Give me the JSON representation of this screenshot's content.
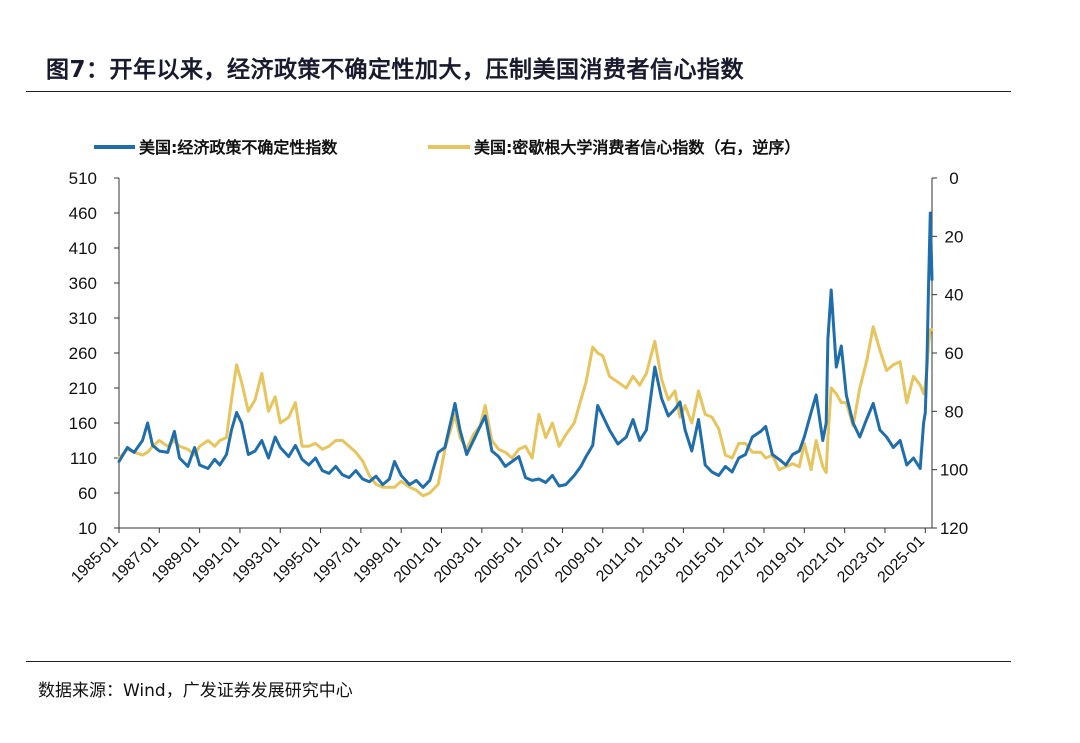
{
  "header": {
    "title": "图7：开年以来，经济政策不确定性加大，压制美国消费者信心指数"
  },
  "footer": {
    "source": "数据来源：Wind，广发证券发展研究中心"
  },
  "colors": {
    "epu": "#1f6eab",
    "sentiment": "#e6c55e",
    "rule": "#222222"
  },
  "chart_data": {
    "type": "line",
    "legend_position": "top",
    "grid": false,
    "x_tick_labels": [
      "1985-01",
      "1987-01",
      "1989-01",
      "1991-01",
      "1993-01",
      "1995-01",
      "1997-01",
      "1999-01",
      "2001-01",
      "2003-01",
      "2005-01",
      "2007-01",
      "2009-01",
      "2011-01",
      "2013-01",
      "2015-01",
      "2017-01",
      "2019-01",
      "2021-01",
      "2023-01",
      "2025-01"
    ],
    "x_range": [
      "1985-01",
      "2025-05"
    ],
    "y_left": {
      "ticks": [
        10,
        60,
        110,
        160,
        210,
        260,
        310,
        360,
        410,
        460,
        510
      ],
      "range": [
        10,
        510
      ]
    },
    "y_right": {
      "ticks": [
        0,
        20,
        40,
        60,
        80,
        100,
        120
      ],
      "range": [
        0,
        120
      ],
      "reversed": true
    },
    "series": [
      {
        "name": "美国:经济政策不确定性指数",
        "axis": "left",
        "points": [
          [
            "1985-01",
            105
          ],
          [
            "1985-06",
            125
          ],
          [
            "1985-10",
            118
          ],
          [
            "1986-03",
            135
          ],
          [
            "1986-06",
            160
          ],
          [
            "1986-09",
            128
          ],
          [
            "1987-01",
            120
          ],
          [
            "1987-06",
            118
          ],
          [
            "1987-10",
            148
          ],
          [
            "1988-01",
            110
          ],
          [
            "1988-06",
            98
          ],
          [
            "1988-10",
            125
          ],
          [
            "1989-01",
            100
          ],
          [
            "1989-06",
            95
          ],
          [
            "1989-10",
            108
          ],
          [
            "1990-01",
            100
          ],
          [
            "1990-05",
            115
          ],
          [
            "1990-08",
            150
          ],
          [
            "1990-11",
            175
          ],
          [
            "1991-02",
            160
          ],
          [
            "1991-06",
            115
          ],
          [
            "1991-10",
            120
          ],
          [
            "1992-02",
            135
          ],
          [
            "1992-06",
            110
          ],
          [
            "1992-10",
            140
          ],
          [
            "1993-01",
            125
          ],
          [
            "1993-06",
            112
          ],
          [
            "1993-10",
            128
          ],
          [
            "1994-02",
            108
          ],
          [
            "1994-06",
            100
          ],
          [
            "1994-10",
            110
          ],
          [
            "1995-02",
            92
          ],
          [
            "1995-06",
            88
          ],
          [
            "1995-10",
            98
          ],
          [
            "1996-02",
            86
          ],
          [
            "1996-06",
            82
          ],
          [
            "1996-10",
            92
          ],
          [
            "1997-02",
            80
          ],
          [
            "1997-06",
            76
          ],
          [
            "1997-10",
            84
          ],
          [
            "1998-02",
            72
          ],
          [
            "1998-06",
            80
          ],
          [
            "1998-09",
            105
          ],
          [
            "1999-01",
            85
          ],
          [
            "1999-06",
            72
          ],
          [
            "1999-10",
            78
          ],
          [
            "2000-02",
            68
          ],
          [
            "2000-06",
            78
          ],
          [
            "2000-11",
            118
          ],
          [
            "2001-03",
            125
          ],
          [
            "2001-09",
            188
          ],
          [
            "2001-12",
            150
          ],
          [
            "2002-04",
            115
          ],
          [
            "2002-08",
            135
          ],
          [
            "2002-12",
            155
          ],
          [
            "2003-03",
            170
          ],
          [
            "2003-07",
            120
          ],
          [
            "2003-11",
            112
          ],
          [
            "2004-03",
            98
          ],
          [
            "2004-07",
            105
          ],
          [
            "2004-11",
            112
          ],
          [
            "2005-03",
            82
          ],
          [
            "2005-07",
            78
          ],
          [
            "2005-11",
            80
          ],
          [
            "2006-03",
            75
          ],
          [
            "2006-07",
            85
          ],
          [
            "2006-11",
            70
          ],
          [
            "2007-03",
            72
          ],
          [
            "2007-08",
            85
          ],
          [
            "2007-12",
            98
          ],
          [
            "2008-03",
            112
          ],
          [
            "2008-07",
            128
          ],
          [
            "2008-10",
            185
          ],
          [
            "2009-01",
            170
          ],
          [
            "2009-05",
            150
          ],
          [
            "2009-10",
            130
          ],
          [
            "2010-03",
            140
          ],
          [
            "2010-07",
            165
          ],
          [
            "2010-11",
            135
          ],
          [
            "2011-03",
            150
          ],
          [
            "2011-08",
            240
          ],
          [
            "2011-12",
            195
          ],
          [
            "2012-04",
            170
          ],
          [
            "2012-08",
            180
          ],
          [
            "2012-11",
            190
          ],
          [
            "2013-02",
            150
          ],
          [
            "2013-06",
            120
          ],
          [
            "2013-10",
            165
          ],
          [
            "2014-02",
            100
          ],
          [
            "2014-06",
            90
          ],
          [
            "2014-10",
            85
          ],
          [
            "2015-02",
            98
          ],
          [
            "2015-06",
            90
          ],
          [
            "2015-10",
            110
          ],
          [
            "2016-02",
            115
          ],
          [
            "2016-06",
            140
          ],
          [
            "2016-11",
            148
          ],
          [
            "2017-02",
            155
          ],
          [
            "2017-06",
            115
          ],
          [
            "2017-10",
            108
          ],
          [
            "2018-02",
            100
          ],
          [
            "2018-06",
            115
          ],
          [
            "2018-10",
            120
          ],
          [
            "2019-01",
            140
          ],
          [
            "2019-05",
            175
          ],
          [
            "2019-08",
            200
          ],
          [
            "2019-12",
            135
          ],
          [
            "2020-02",
            160
          ],
          [
            "2020-03",
            280
          ],
          [
            "2020-05",
            350
          ],
          [
            "2020-08",
            240
          ],
          [
            "2020-11",
            270
          ],
          [
            "2021-02",
            200
          ],
          [
            "2021-06",
            160
          ],
          [
            "2021-10",
            140
          ],
          [
            "2022-02",
            165
          ],
          [
            "2022-06",
            188
          ],
          [
            "2022-10",
            150
          ],
          [
            "2023-02",
            140
          ],
          [
            "2023-06",
            125
          ],
          [
            "2023-10",
            135
          ],
          [
            "2024-02",
            100
          ],
          [
            "2024-06",
            110
          ],
          [
            "2024-10",
            95
          ],
          [
            "2024-12",
            160
          ],
          [
            "2025-01",
            175
          ],
          [
            "2025-02",
            250
          ],
          [
            "2025-03",
            360
          ],
          [
            "2025-04",
            460
          ],
          [
            "2025-05",
            365
          ]
        ]
      },
      {
        "name": "美国:密歇根大学消费者信心指数（右，逆序）",
        "axis": "right",
        "points": [
          [
            "1985-01",
            96
          ],
          [
            "1985-06",
            93
          ],
          [
            "1985-10",
            94
          ],
          [
            "1986-03",
            95
          ],
          [
            "1986-06",
            94
          ],
          [
            "1986-09",
            92
          ],
          [
            "1987-01",
            90
          ],
          [
            "1987-06",
            92
          ],
          [
            "1987-10",
            90
          ],
          [
            "1988-01",
            92
          ],
          [
            "1988-06",
            93
          ],
          [
            "1988-10",
            95
          ],
          [
            "1989-01",
            92
          ],
          [
            "1989-06",
            90
          ],
          [
            "1989-10",
            92
          ],
          [
            "1990-01",
            90
          ],
          [
            "1990-05",
            89
          ],
          [
            "1990-08",
            76
          ],
          [
            "1990-11",
            64
          ],
          [
            "1991-02",
            70
          ],
          [
            "1991-06",
            80
          ],
          [
            "1991-10",
            76
          ],
          [
            "1992-02",
            67
          ],
          [
            "1992-06",
            80
          ],
          [
            "1992-10",
            75
          ],
          [
            "1993-01",
            84
          ],
          [
            "1993-06",
            82
          ],
          [
            "1993-10",
            77
          ],
          [
            "1994-02",
            92
          ],
          [
            "1994-06",
            92
          ],
          [
            "1994-10",
            91
          ],
          [
            "1995-02",
            93
          ],
          [
            "1995-06",
            92
          ],
          [
            "1995-10",
            90
          ],
          [
            "1996-02",
            90
          ],
          [
            "1996-06",
            92
          ],
          [
            "1996-10",
            94
          ],
          [
            "1997-02",
            97
          ],
          [
            "1997-06",
            102
          ],
          [
            "1997-10",
            105
          ],
          [
            "1998-02",
            106
          ],
          [
            "1998-06",
            106
          ],
          [
            "1998-09",
            106
          ],
          [
            "1999-01",
            104
          ],
          [
            "1999-06",
            106
          ],
          [
            "1999-10",
            107
          ],
          [
            "2000-02",
            109
          ],
          [
            "2000-06",
            108
          ],
          [
            "2000-11",
            105
          ],
          [
            "2001-03",
            93
          ],
          [
            "2001-09",
            81
          ],
          [
            "2001-12",
            89
          ],
          [
            "2002-04",
            93
          ],
          [
            "2002-08",
            88
          ],
          [
            "2002-12",
            85
          ],
          [
            "2003-03",
            78
          ],
          [
            "2003-07",
            90
          ],
          [
            "2003-11",
            93
          ],
          [
            "2004-03",
            94
          ],
          [
            "2004-07",
            96
          ],
          [
            "2004-11",
            93
          ],
          [
            "2005-03",
            92
          ],
          [
            "2005-07",
            96
          ],
          [
            "2005-11",
            81
          ],
          [
            "2006-03",
            89
          ],
          [
            "2006-07",
            84
          ],
          [
            "2006-11",
            92
          ],
          [
            "2007-03",
            88
          ],
          [
            "2007-08",
            84
          ],
          [
            "2007-12",
            76
          ],
          [
            "2008-03",
            70
          ],
          [
            "2008-07",
            58
          ],
          [
            "2008-10",
            60
          ],
          [
            "2009-01",
            61
          ],
          [
            "2009-05",
            68
          ],
          [
            "2009-10",
            70
          ],
          [
            "2010-03",
            72
          ],
          [
            "2010-07",
            68
          ],
          [
            "2010-11",
            71
          ],
          [
            "2011-03",
            67
          ],
          [
            "2011-08",
            56
          ],
          [
            "2011-12",
            69
          ],
          [
            "2012-04",
            76
          ],
          [
            "2012-08",
            73
          ],
          [
            "2012-11",
            82
          ],
          [
            "2013-02",
            78
          ],
          [
            "2013-06",
            84
          ],
          [
            "2013-10",
            73
          ],
          [
            "2014-02",
            81
          ],
          [
            "2014-06",
            82
          ],
          [
            "2014-10",
            86
          ],
          [
            "2015-02",
            95
          ],
          [
            "2015-06",
            96
          ],
          [
            "2015-10",
            91
          ],
          [
            "2016-02",
            91
          ],
          [
            "2016-06",
            94
          ],
          [
            "2016-11",
            94
          ],
          [
            "2017-02",
            96
          ],
          [
            "2017-06",
            95
          ],
          [
            "2017-10",
            100
          ],
          [
            "2018-02",
            99
          ],
          [
            "2018-06",
            98
          ],
          [
            "2018-10",
            99
          ],
          [
            "2019-01",
            91
          ],
          [
            "2019-05",
            100
          ],
          [
            "2019-08",
            90
          ],
          [
            "2019-12",
            99
          ],
          [
            "2020-02",
            101
          ],
          [
            "2020-03",
            89
          ],
          [
            "2020-05",
            72
          ],
          [
            "2020-08",
            74
          ],
          [
            "2020-11",
            77
          ],
          [
            "2021-02",
            77
          ],
          [
            "2021-06",
            85
          ],
          [
            "2021-10",
            72
          ],
          [
            "2022-02",
            63
          ],
          [
            "2022-06",
            51
          ],
          [
            "2022-10",
            59
          ],
          [
            "2023-02",
            66
          ],
          [
            "2023-06",
            64
          ],
          [
            "2023-10",
            63
          ],
          [
            "2024-02",
            77
          ],
          [
            "2024-06",
            68
          ],
          [
            "2024-10",
            71
          ],
          [
            "2024-12",
            74
          ],
          [
            "2025-01",
            71
          ],
          [
            "2025-02",
            65
          ],
          [
            "2025-03",
            57
          ],
          [
            "2025-04",
            52
          ],
          [
            "2025-05",
            52
          ]
        ]
      }
    ]
  }
}
